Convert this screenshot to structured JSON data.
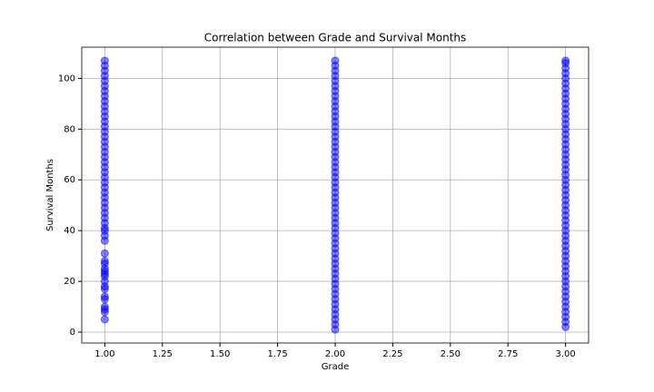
{
  "chart_data": {
    "type": "scatter",
    "title": "Correlation between Grade and Survival Months",
    "x_label": "Grade",
    "y_label": "Survival Months",
    "color": "#0000ff",
    "grid": true,
    "xlim": [
      0.9,
      3.1
    ],
    "ylim": [
      -4.3,
      112.3
    ],
    "xticks": [
      {
        "value": 1,
        "label": "1.00"
      },
      {
        "value": 1.25,
        "label": "1.25"
      },
      {
        "value": 1.5,
        "label": "1.50"
      },
      {
        "value": 1.75,
        "label": "1.75"
      },
      {
        "value": 2,
        "label": "2.00"
      },
      {
        "value": 2.25,
        "label": "2.25"
      },
      {
        "value": 2.5,
        "label": "2.50"
      },
      {
        "value": 2.75,
        "label": "2.75"
      },
      {
        "value": 3,
        "label": "3.00"
      }
    ],
    "yticks": [
      0,
      20,
      40,
      60,
      80,
      100
    ],
    "x": [
      1,
      1,
      1,
      1,
      1,
      1,
      1,
      1,
      1,
      1,
      1,
      1,
      1,
      1,
      1,
      1,
      1,
      1,
      1,
      1,
      1,
      1,
      1,
      1,
      1,
      1,
      1,
      1,
      1,
      1,
      1,
      1,
      1,
      1,
      1,
      1,
      1,
      1,
      1,
      1,
      1,
      1,
      1,
      1,
      1,
      1,
      1,
      1,
      1,
      1,
      1,
      1,
      1,
      2,
      2,
      2,
      2,
      2,
      2,
      2,
      2,
      2,
      2,
      2,
      2,
      2,
      2,
      2,
      2,
      2,
      2,
      2,
      2,
      2,
      2,
      2,
      2,
      2,
      2,
      2,
      2,
      2,
      2,
      2,
      2,
      2,
      2,
      2,
      2,
      2,
      2,
      2,
      2,
      2,
      2,
      2,
      2,
      2,
      2,
      2,
      2,
      2,
      2,
      2,
      2,
      2,
      2,
      3,
      3,
      3,
      3,
      3,
      3,
      3,
      3,
      3,
      3,
      3,
      3,
      3,
      3,
      3,
      3,
      3,
      3,
      3,
      3,
      3,
      3,
      3,
      3,
      3,
      3,
      3,
      3,
      3,
      3,
      3,
      3,
      3,
      3,
      3,
      3,
      3,
      3,
      3,
      3,
      3,
      3,
      3,
      3,
      3,
      3,
      3,
      3,
      3,
      3,
      3,
      3,
      3,
      3
    ],
    "y": [
      5,
      8,
      9,
      10,
      13,
      14,
      17,
      18,
      20,
      22,
      23,
      24,
      25,
      27,
      28,
      31,
      36,
      38,
      40,
      41,
      43,
      45,
      47,
      49,
      51,
      53,
      55,
      57,
      59,
      61,
      63,
      65,
      67,
      69,
      71,
      73,
      75,
      77,
      79,
      81,
      83,
      85,
      87,
      89,
      91,
      93,
      95,
      97,
      99,
      101,
      103,
      105,
      107,
      1,
      3,
      5,
      7,
      9,
      11,
      13,
      15,
      17,
      19,
      21,
      23,
      25,
      27,
      29,
      31,
      33,
      35,
      37,
      39,
      41,
      43,
      45,
      47,
      49,
      51,
      53,
      55,
      57,
      59,
      61,
      63,
      65,
      67,
      69,
      71,
      73,
      75,
      77,
      79,
      81,
      83,
      85,
      87,
      89,
      91,
      93,
      95,
      97,
      99,
      101,
      103,
      105,
      107,
      2,
      4,
      6,
      8,
      10,
      12,
      14,
      16,
      18,
      20,
      22,
      24,
      26,
      28,
      30,
      32,
      34,
      36,
      38,
      40,
      42,
      44,
      46,
      48,
      50,
      52,
      54,
      56,
      58,
      60,
      62,
      64,
      66,
      68,
      70,
      72,
      74,
      76,
      78,
      80,
      82,
      84,
      86,
      88,
      90,
      92,
      94,
      96,
      98,
      100,
      102,
      104,
      106,
      107
    ]
  }
}
